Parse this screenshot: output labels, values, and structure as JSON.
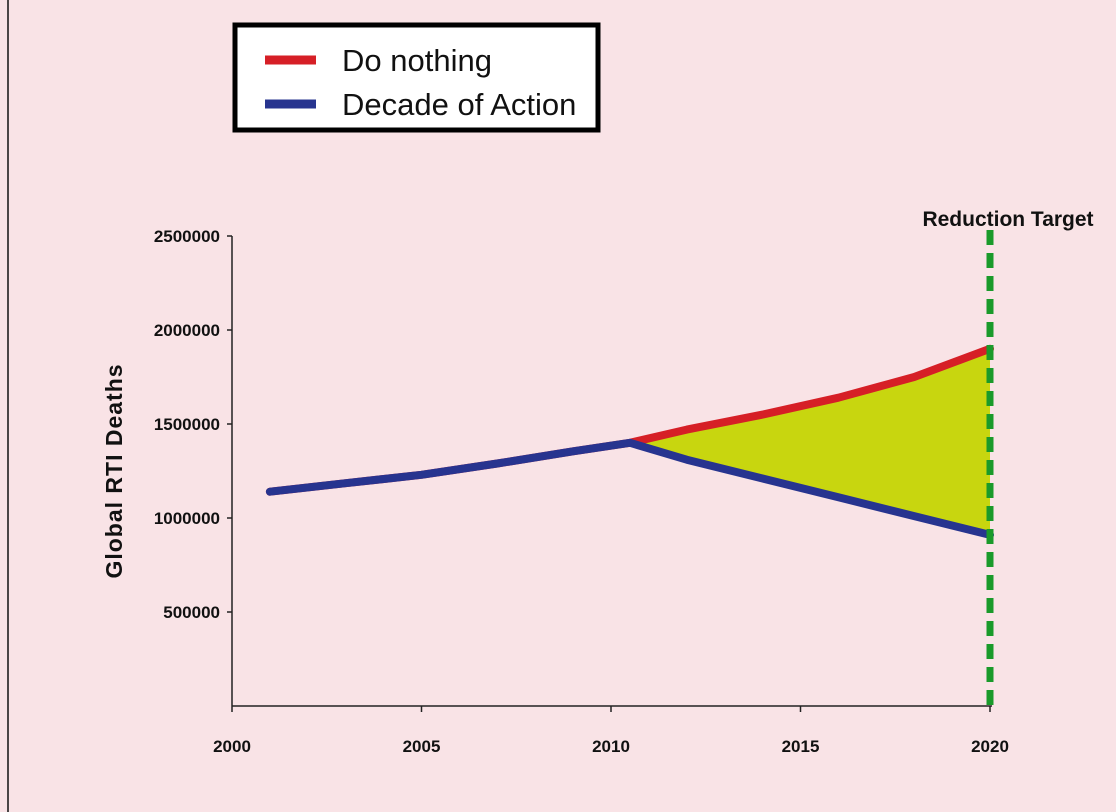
{
  "colors": {
    "background": "#f9e3e6",
    "do_nothing": "#d61f26",
    "decade_of_action": "#27348f",
    "gap_fill": "#c8d60f",
    "target_line": "#1a9a2a"
  },
  "chart_data": {
    "type": "line",
    "title": "",
    "xlabel": "",
    "ylabel": "Global RTI Deaths",
    "xlim": [
      2000,
      2020
    ],
    "ylim": [
      0,
      2500000
    ],
    "x_ticks": [
      "2000",
      "2005",
      "2010",
      "2015",
      "2020"
    ],
    "y_ticks": [
      "500000",
      "1000000",
      "1500000",
      "2000000",
      "2500000"
    ],
    "legend_position": "top-left",
    "grid": false,
    "series": [
      {
        "name": "Do nothing",
        "color": "#d61f26",
        "x": [
          2001,
          2003,
          2005,
          2007,
          2009,
          2010.5,
          2012,
          2014,
          2016,
          2018,
          2020
        ],
        "y": [
          1140000,
          1185000,
          1230000,
          1290000,
          1355000,
          1400000,
          1470000,
          1550000,
          1640000,
          1750000,
          1900000
        ]
      },
      {
        "name": "Decade of Action",
        "color": "#27348f",
        "x": [
          2001,
          2003,
          2005,
          2007,
          2009,
          2010.5,
          2012,
          2014,
          2016,
          2018,
          2020
        ],
        "y": [
          1140000,
          1185000,
          1230000,
          1290000,
          1355000,
          1400000,
          1310000,
          1210000,
          1110000,
          1010000,
          910000
        ]
      }
    ],
    "annotations": [
      {
        "text": "Reduction Target",
        "x": 2020
      }
    ]
  }
}
